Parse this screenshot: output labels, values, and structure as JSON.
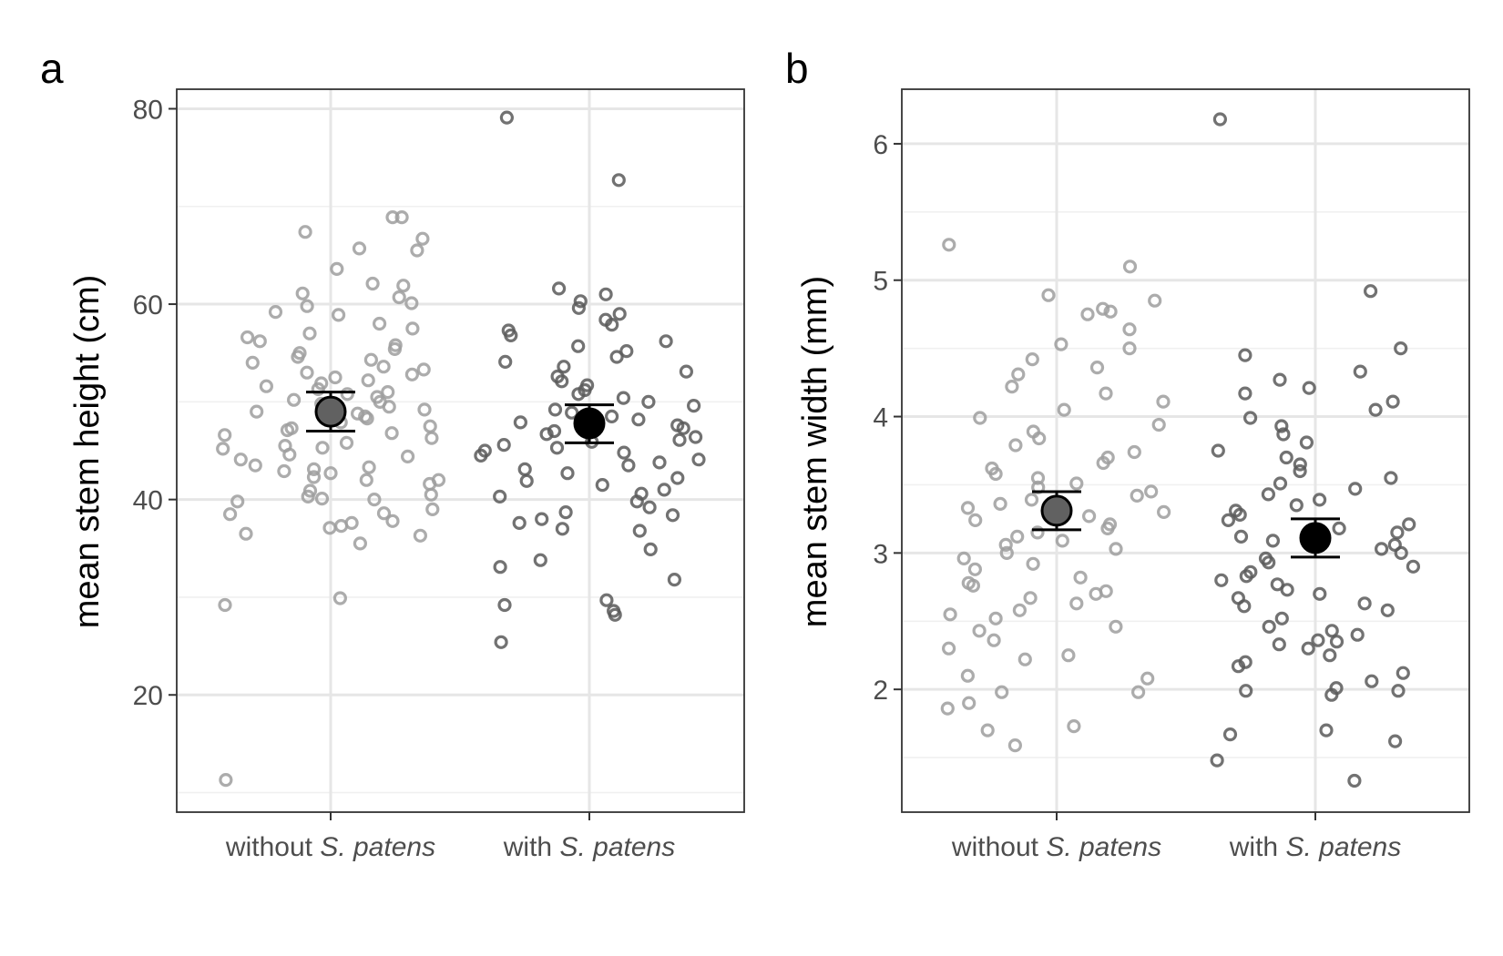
{
  "chart_data": [
    {
      "type": "scatter",
      "panel_label": "a",
      "ylabel": "mean stem height (cm)",
      "ylim": [
        8,
        82
      ],
      "yticks": [
        20,
        40,
        60,
        80
      ],
      "grid": true,
      "categories": [
        {
          "prefix": "without ",
          "italic": "S. patens"
        },
        {
          "prefix": "with ",
          "italic": "S. patens"
        }
      ],
      "series": [
        {
          "category_index": 0,
          "point_color": "#9e9e9e",
          "mean": 49.0,
          "error": [
            47.0,
            51.0
          ],
          "mean_color": "#616161",
          "values": [
            11.3,
            29.2,
            29.9,
            35.5,
            36.3,
            36.5,
            37.1,
            37.3,
            37.6,
            37.8,
            38.5,
            38.6,
            39.0,
            39.8,
            40.0,
            40.1,
            40.3,
            40.5,
            40.9,
            41.6,
            42.0,
            42.0,
            42.3,
            42.7,
            42.9,
            43.1,
            43.3,
            43.5,
            44.1,
            44.4,
            44.6,
            45.2,
            45.3,
            45.5,
            45.8,
            46.3,
            46.6,
            46.8,
            47.1,
            47.3,
            47.5,
            47.9,
            48.3,
            48.5,
            48.8,
            49.0,
            49.2,
            49.5,
            49.8,
            50.0,
            50.2,
            50.5,
            50.8,
            51.0,
            51.3,
            51.6,
            51.9,
            52.2,
            52.5,
            52.8,
            53.0,
            53.3,
            53.6,
            54.0,
            54.3,
            54.6,
            55.0,
            55.4,
            55.8,
            56.2,
            56.6,
            57.0,
            57.5,
            58.0,
            58.9,
            59.2,
            59.8,
            60.1,
            60.7,
            61.1,
            61.9,
            62.1,
            63.6,
            65.5,
            65.7,
            66.7,
            67.4,
            68.9,
            68.9
          ]
        },
        {
          "category_index": 1,
          "point_color": "#595959",
          "mean": 47.8,
          "error": [
            45.8,
            49.7
          ],
          "mean_color": "#000000",
          "values": [
            25.4,
            28.2,
            28.6,
            29.2,
            29.7,
            31.8,
            33.1,
            33.8,
            34.9,
            36.8,
            37.0,
            37.6,
            38.0,
            38.4,
            38.7,
            39.2,
            39.8,
            40.3,
            40.6,
            41.0,
            41.5,
            41.9,
            42.2,
            42.7,
            43.1,
            43.5,
            43.8,
            44.1,
            44.5,
            44.8,
            45.0,
            45.3,
            45.6,
            45.9,
            46.1,
            46.4,
            46.7,
            47.0,
            47.3,
            47.6,
            47.9,
            48.2,
            48.5,
            48.9,
            49.2,
            49.6,
            50.0,
            50.4,
            50.8,
            51.2,
            51.7,
            52.1,
            52.6,
            53.1,
            53.6,
            54.1,
            54.6,
            55.2,
            55.7,
            56.2,
            56.8,
            57.3,
            57.9,
            58.4,
            59.0,
            59.6,
            60.3,
            61.0,
            61.6,
            72.7,
            79.1
          ]
        }
      ]
    },
    {
      "type": "scatter",
      "panel_label": "b",
      "ylabel": "mean stem width (mm)",
      "ylim": [
        1.1,
        6.4
      ],
      "yticks": [
        2,
        3,
        4,
        5,
        6
      ],
      "grid": true,
      "categories": [
        {
          "prefix": "without ",
          "italic": "S. patens"
        },
        {
          "prefix": "with ",
          "italic": "S. patens"
        }
      ],
      "series": [
        {
          "category_index": 0,
          "point_color": "#9e9e9e",
          "mean": 3.31,
          "error": [
            3.17,
            3.45
          ],
          "mean_color": "#616161",
          "values": [
            1.59,
            1.7,
            1.73,
            1.86,
            1.9,
            1.98,
            1.98,
            2.08,
            2.1,
            2.22,
            2.25,
            2.3,
            2.36,
            2.43,
            2.46,
            2.52,
            2.55,
            2.58,
            2.63,
            2.67,
            2.7,
            2.72,
            2.76,
            2.78,
            2.82,
            2.88,
            2.92,
            2.96,
            3.0,
            3.03,
            3.06,
            3.09,
            3.12,
            3.15,
            3.18,
            3.21,
            3.24,
            3.27,
            3.3,
            3.33,
            3.36,
            3.39,
            3.42,
            3.45,
            3.48,
            3.51,
            3.55,
            3.58,
            3.62,
            3.66,
            3.7,
            3.74,
            3.79,
            3.84,
            3.89,
            3.94,
            3.99,
            4.05,
            4.11,
            4.17,
            4.22,
            4.31,
            4.36,
            4.42,
            4.5,
            4.53,
            4.64,
            4.75,
            4.77,
            4.79,
            4.85,
            4.89,
            5.1,
            5.26
          ]
        },
        {
          "category_index": 1,
          "point_color": "#595959",
          "mean": 3.11,
          "error": [
            2.97,
            3.25
          ],
          "mean_color": "#000000",
          "values": [
            1.33,
            1.48,
            1.62,
            1.67,
            1.7,
            1.96,
            1.99,
            1.99,
            2.01,
            2.06,
            2.12,
            2.17,
            2.2,
            2.25,
            2.3,
            2.33,
            2.35,
            2.36,
            2.4,
            2.43,
            2.46,
            2.52,
            2.58,
            2.61,
            2.63,
            2.67,
            2.7,
            2.73,
            2.77,
            2.8,
            2.83,
            2.86,
            2.9,
            2.93,
            2.96,
            3.0,
            3.03,
            3.06,
            3.09,
            3.12,
            3.15,
            3.18,
            3.21,
            3.24,
            3.28,
            3.31,
            3.35,
            3.39,
            3.43,
            3.47,
            3.51,
            3.55,
            3.6,
            3.65,
            3.7,
            3.75,
            3.81,
            3.87,
            3.93,
            3.99,
            4.05,
            4.11,
            4.17,
            4.21,
            4.27,
            4.33,
            4.45,
            4.5,
            4.92,
            6.18
          ]
        }
      ]
    }
  ]
}
